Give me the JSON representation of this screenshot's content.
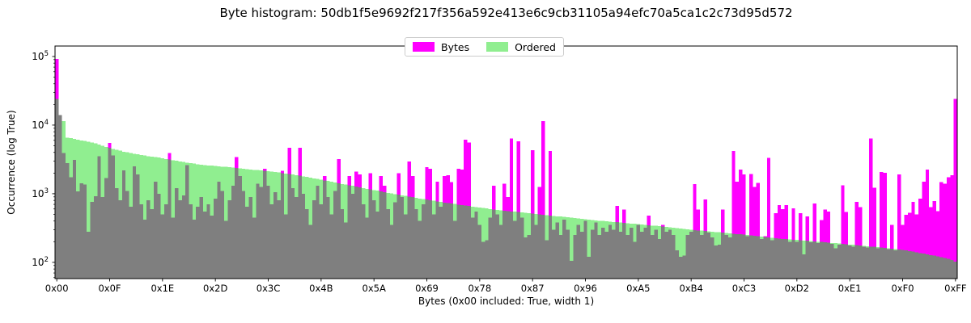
{
  "chart_data": {
    "type": "bar",
    "title": "Byte histogram: 50db1f5e9692f217f356a592e413e6c9cb31105a94efc70a5ca1c2c73d95d572",
    "xlabel": "Bytes (0x00 included: True, width 1)",
    "ylabel": "Occurrence (log True)",
    "x_min": 0,
    "x_max": 255,
    "bar_width": 1,
    "y_scale": "log",
    "ylim": [
      58,
      142000
    ],
    "grid": false,
    "legend_position": "upper center",
    "x_tick_values": [
      0,
      15,
      30,
      45,
      60,
      75,
      90,
      105,
      120,
      135,
      150,
      165,
      180,
      195,
      210,
      225,
      240,
      255
    ],
    "x_tick_labels": [
      "0x00",
      "0x0F",
      "0x1E",
      "0x2D",
      "0x3C",
      "0x4B",
      "0x5A",
      "0x69",
      "0x78",
      "0x87",
      "0x96",
      "0xA5",
      "0xB4",
      "0xC3",
      "0xD2",
      "0xE1",
      "0xF0",
      "0xFF"
    ],
    "y_ticks": [
      {
        "value": 100,
        "base": "10",
        "exp": "2"
      },
      {
        "value": 1000,
        "base": "10",
        "exp": "3"
      },
      {
        "value": 10000,
        "base": "10",
        "exp": "4"
      },
      {
        "value": 100000,
        "base": "10",
        "exp": "5"
      }
    ],
    "overlap_color": "#7f7f7f",
    "series": [
      {
        "name": "Bytes",
        "color": "#ff00ff",
        "values": [
          92000,
          14000,
          3900,
          2800,
          1730,
          3100,
          1080,
          1420,
          1370,
          280,
          760,
          920,
          3500,
          900,
          1700,
          5500,
          3600,
          1200,
          800,
          2200,
          1100,
          650,
          2500,
          1900,
          700,
          420,
          800,
          600,
          1500,
          1000,
          500,
          700,
          3900,
          450,
          1200,
          800,
          950,
          2600,
          700,
          420,
          650,
          900,
          550,
          700,
          480,
          850,
          1500,
          1100,
          400,
          800,
          1300,
          3400,
          1800,
          1100,
          650,
          900,
          450,
          1400,
          1250,
          2300,
          1300,
          700,
          1050,
          800,
          2150,
          500,
          4670,
          1200,
          900,
          4670,
          1000,
          600,
          350,
          800,
          1300,
          700,
          1800,
          900,
          500,
          1100,
          3200,
          600,
          380,
          1800,
          1000,
          2100,
          1900,
          700,
          450,
          2000,
          800,
          550,
          1800,
          1300,
          600,
          350,
          750,
          2000,
          900,
          500,
          2950,
          1800,
          600,
          400,
          700,
          2450,
          2300,
          500,
          1500,
          650,
          1800,
          1850,
          1480,
          400,
          2300,
          2250,
          6100,
          5600,
          450,
          550,
          350,
          200,
          210,
          450,
          1300,
          500,
          350,
          1400,
          900,
          6400,
          400,
          5800,
          450,
          230,
          250,
          4300,
          350,
          1250,
          11500,
          210,
          4200,
          300,
          380,
          250,
          420,
          300,
          105,
          250,
          350,
          280,
          400,
          120,
          300,
          380,
          250,
          320,
          280,
          350,
          300,
          660,
          280,
          590,
          250,
          320,
          200,
          350,
          280,
          320,
          480,
          250,
          300,
          220,
          350,
          280,
          300,
          250,
          150,
          120,
          125,
          250,
          280,
          1380,
          590,
          250,
          830,
          270,
          230,
          175,
          180,
          590,
          250,
          230,
          4200,
          1500,
          2250,
          1900,
          240,
          1950,
          1250,
          1430,
          220,
          240,
          3350,
          210,
          520,
          680,
          600,
          680,
          200,
          610,
          200,
          520,
          130,
          470,
          195,
          720,
          190,
          415,
          585,
          550,
          185,
          160,
          180,
          1320,
          540,
          175,
          170,
          760,
          640,
          170,
          165,
          6400,
          1230,
          160,
          2070,
          2030,
          155,
          350,
          150,
          1900,
          350,
          490,
          530,
          760,
          500,
          850,
          1500,
          2250,
          640,
          780,
          560,
          1480,
          1400,
          1750,
          1850,
          24000
        ]
      },
      {
        "name": "Ordered",
        "color": "#90ee90",
        "values": [
          24000,
          14000,
          11500,
          6600,
          6450,
          6300,
          6150,
          6000,
          5850,
          5700,
          5550,
          5400,
          5200,
          5000,
          4800,
          4650,
          4500,
          4350,
          4250,
          4100,
          4000,
          3900,
          3820,
          3740,
          3660,
          3600,
          3540,
          3480,
          3420,
          3360,
          3300,
          3220,
          3150,
          3080,
          3010,
          2950,
          2890,
          2840,
          2790,
          2740,
          2690,
          2650,
          2620,
          2590,
          2560,
          2530,
          2500,
          2480,
          2460,
          2440,
          2410,
          2380,
          2350,
          2320,
          2290,
          2260,
          2230,
          2210,
          2190,
          2160,
          2130,
          2110,
          2080,
          2040,
          2000,
          1970,
          1940,
          1910,
          1870,
          1830,
          1790,
          1760,
          1720,
          1680,
          1650,
          1610,
          1570,
          1530,
          1490,
          1450,
          1420,
          1390,
          1360,
          1330,
          1300,
          1270,
          1240,
          1210,
          1180,
          1160,
          1130,
          1110,
          1080,
          1060,
          1030,
          1010,
          990,
          970,
          950,
          930,
          910,
          890,
          870,
          850,
          835,
          820,
          805,
          790,
          775,
          760,
          745,
          730,
          720,
          710,
          695,
          680,
          670,
          660,
          650,
          640,
          630,
          620,
          610,
          600,
          592,
          584,
          576,
          568,
          560,
          553,
          546,
          539,
          532,
          525,
          518,
          511,
          505,
          499,
          493,
          487,
          481,
          475,
          470,
          465,
          460,
          455,
          450,
          444,
          438,
          432,
          426,
          420,
          415,
          410,
          405,
          400,
          396,
          392,
          388,
          384,
          380,
          376,
          372,
          368,
          364,
          360,
          356,
          352,
          348,
          344,
          340,
          336,
          332,
          328,
          324,
          320,
          316,
          312,
          308,
          304,
          300,
          296,
          292,
          289,
          286,
          283,
          280,
          277,
          274,
          271,
          268,
          265,
          262,
          259,
          256,
          253,
          250,
          247,
          244,
          241,
          238,
          235,
          232,
          229,
          226,
          223,
          220,
          218,
          216,
          214,
          212,
          210,
          208,
          206,
          204,
          202,
          200,
          198,
          196,
          194,
          192,
          190,
          188,
          186,
          184,
          182,
          180,
          178,
          176,
          174,
          172,
          170,
          168,
          166,
          164,
          162,
          160,
          158,
          156,
          154,
          152,
          149,
          146,
          143,
          140,
          137,
          134,
          131,
          128,
          125,
          122,
          119,
          116,
          112,
          108,
          103
        ]
      }
    ]
  }
}
